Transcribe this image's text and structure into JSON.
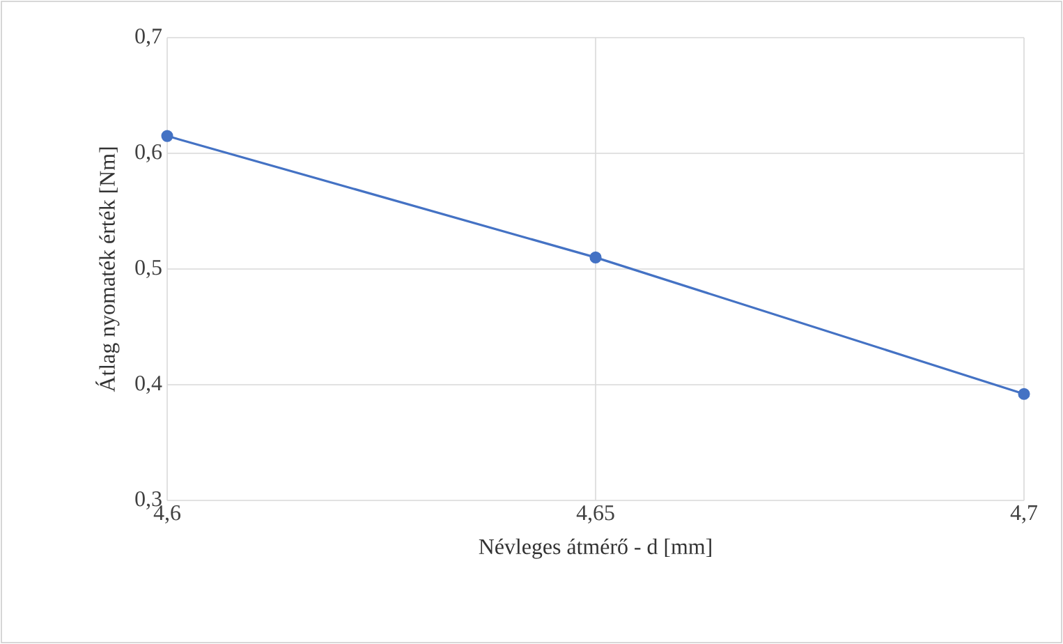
{
  "chart_data": {
    "type": "line",
    "xlabel": "Névleges átmérő - d [mm]",
    "ylabel": "Átlag nyomaték érték [Nm]",
    "x": [
      4.6,
      4.65,
      4.7
    ],
    "series": [
      {
        "color": "#4472c4",
        "values": [
          0.615,
          0.51,
          0.392
        ]
      }
    ],
    "xlim": [
      4.6,
      4.7
    ],
    "ylim": [
      0.3,
      0.7
    ],
    "xticks": [
      {
        "value": 4.6,
        "label": "4,6"
      },
      {
        "value": 4.65,
        "label": "4,65"
      },
      {
        "value": 4.7,
        "label": "4,7"
      }
    ],
    "yticks": [
      {
        "value": 0.3,
        "label": "0,3"
      },
      {
        "value": 0.4,
        "label": "0,4"
      },
      {
        "value": 0.5,
        "label": "0,5"
      },
      {
        "value": 0.6,
        "label": "0,6"
      },
      {
        "value": 0.7,
        "label": "0,7"
      }
    ],
    "grid": true,
    "marker": "circle",
    "line_style": "solid"
  }
}
